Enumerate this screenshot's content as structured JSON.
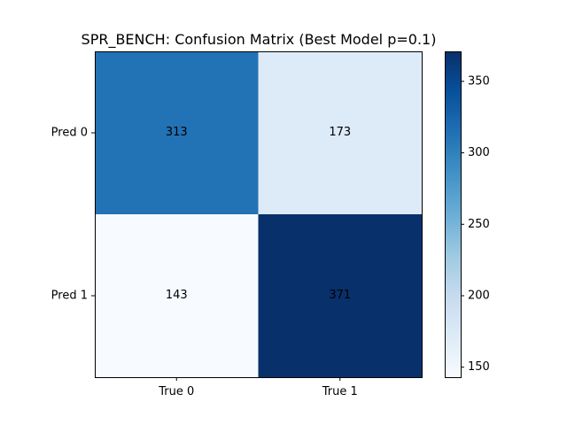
{
  "chart_data": {
    "type": "heatmap",
    "title": "SPR_BENCH: Confusion Matrix (Best Model p=0.1)",
    "x_categories": [
      "True 0",
      "True 1"
    ],
    "y_categories": [
      "Pred 0",
      "Pred 1"
    ],
    "values": [
      [
        313,
        173
      ],
      [
        143,
        371
      ]
    ],
    "colormap": "Blues",
    "colorbar": {
      "min": 143,
      "max": 371,
      "ticks": [
        150,
        200,
        250,
        300,
        350
      ]
    },
    "grid": false
  }
}
